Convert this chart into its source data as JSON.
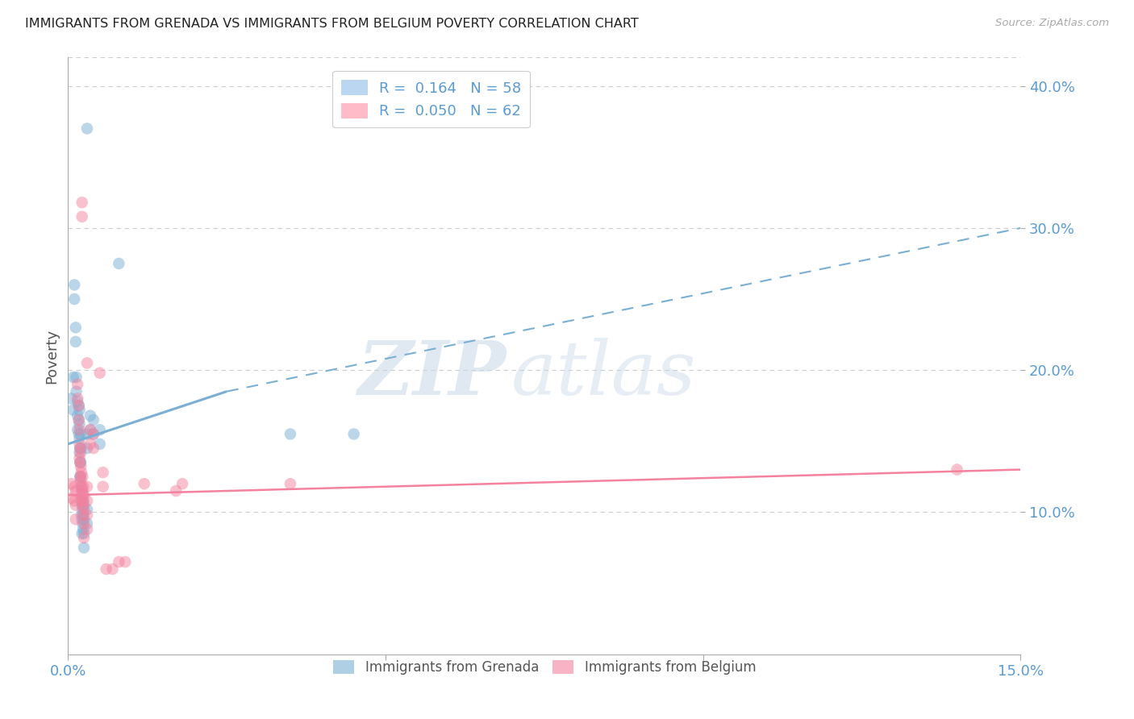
{
  "title": "IMMIGRANTS FROM GRENADA VS IMMIGRANTS FROM BELGIUM POVERTY CORRELATION CHART",
  "source": "Source: ZipAtlas.com",
  "ylabel": "Poverty",
  "ytick_labels": [
    "10.0%",
    "20.0%",
    "30.0%",
    "40.0%"
  ],
  "ytick_values": [
    0.1,
    0.2,
    0.3,
    0.4
  ],
  "xlim": [
    0.0,
    0.15
  ],
  "ylim": [
    0.0,
    0.42
  ],
  "grenada_color": "#7AAFD4",
  "belgium_color": "#F4829E",
  "watermark_zip": "ZIP",
  "watermark_atlas": "atlas",
  "background_color": "#FFFFFF",
  "grid_color": "#CCCCCC",
  "grenada_scatter": [
    [
      0.0005,
      0.18
    ],
    [
      0.0008,
      0.195
    ],
    [
      0.0008,
      0.172
    ],
    [
      0.001,
      0.26
    ],
    [
      0.001,
      0.25
    ],
    [
      0.0012,
      0.23
    ],
    [
      0.0012,
      0.22
    ],
    [
      0.0013,
      0.195
    ],
    [
      0.0013,
      0.185
    ],
    [
      0.0015,
      0.178
    ],
    [
      0.0015,
      0.168
    ],
    [
      0.0015,
      0.158
    ],
    [
      0.0017,
      0.175
    ],
    [
      0.0017,
      0.165
    ],
    [
      0.0017,
      0.155
    ],
    [
      0.0018,
      0.172
    ],
    [
      0.0018,
      0.162
    ],
    [
      0.0018,
      0.152
    ],
    [
      0.0018,
      0.142
    ],
    [
      0.0019,
      0.145
    ],
    [
      0.0019,
      0.135
    ],
    [
      0.0019,
      0.125
    ],
    [
      0.002,
      0.155
    ],
    [
      0.002,
      0.145
    ],
    [
      0.002,
      0.135
    ],
    [
      0.002,
      0.125
    ],
    [
      0.0021,
      0.118
    ],
    [
      0.0021,
      0.108
    ],
    [
      0.0021,
      0.098
    ],
    [
      0.0022,
      0.115
    ],
    [
      0.0022,
      0.105
    ],
    [
      0.0022,
      0.095
    ],
    [
      0.0022,
      0.085
    ],
    [
      0.0023,
      0.112
    ],
    [
      0.0023,
      0.102
    ],
    [
      0.0023,
      0.092
    ],
    [
      0.0024,
      0.108
    ],
    [
      0.0024,
      0.098
    ],
    [
      0.0024,
      0.088
    ],
    [
      0.0025,
      0.105
    ],
    [
      0.0025,
      0.095
    ],
    [
      0.0025,
      0.085
    ],
    [
      0.0025,
      0.075
    ],
    [
      0.003,
      0.37
    ],
    [
      0.003,
      0.155
    ],
    [
      0.003,
      0.145
    ],
    [
      0.003,
      0.102
    ],
    [
      0.003,
      0.092
    ],
    [
      0.0035,
      0.168
    ],
    [
      0.0035,
      0.158
    ],
    [
      0.004,
      0.165
    ],
    [
      0.004,
      0.155
    ],
    [
      0.005,
      0.158
    ],
    [
      0.005,
      0.148
    ],
    [
      0.008,
      0.275
    ],
    [
      0.035,
      0.155
    ],
    [
      0.045,
      0.155
    ]
  ],
  "belgium_scatter": [
    [
      0.0005,
      0.12
    ],
    [
      0.0005,
      0.11
    ],
    [
      0.001,
      0.118
    ],
    [
      0.001,
      0.108
    ],
    [
      0.0012,
      0.115
    ],
    [
      0.0012,
      0.105
    ],
    [
      0.0012,
      0.095
    ],
    [
      0.0015,
      0.19
    ],
    [
      0.0015,
      0.18
    ],
    [
      0.0017,
      0.175
    ],
    [
      0.0017,
      0.165
    ],
    [
      0.0018,
      0.158
    ],
    [
      0.0018,
      0.148
    ],
    [
      0.0018,
      0.138
    ],
    [
      0.0019,
      0.145
    ],
    [
      0.0019,
      0.135
    ],
    [
      0.0019,
      0.125
    ],
    [
      0.002,
      0.142
    ],
    [
      0.002,
      0.132
    ],
    [
      0.002,
      0.122
    ],
    [
      0.002,
      0.112
    ],
    [
      0.0021,
      0.128
    ],
    [
      0.0021,
      0.118
    ],
    [
      0.0021,
      0.108
    ],
    [
      0.0022,
      0.318
    ],
    [
      0.0022,
      0.308
    ],
    [
      0.0023,
      0.125
    ],
    [
      0.0023,
      0.115
    ],
    [
      0.0023,
      0.105
    ],
    [
      0.0024,
      0.118
    ],
    [
      0.0024,
      0.108
    ],
    [
      0.0024,
      0.098
    ],
    [
      0.0025,
      0.112
    ],
    [
      0.0025,
      0.102
    ],
    [
      0.0025,
      0.092
    ],
    [
      0.0025,
      0.082
    ],
    [
      0.003,
      0.205
    ],
    [
      0.003,
      0.118
    ],
    [
      0.003,
      0.108
    ],
    [
      0.003,
      0.098
    ],
    [
      0.003,
      0.088
    ],
    [
      0.0035,
      0.158
    ],
    [
      0.0035,
      0.148
    ],
    [
      0.004,
      0.155
    ],
    [
      0.004,
      0.145
    ],
    [
      0.005,
      0.198
    ],
    [
      0.0055,
      0.128
    ],
    [
      0.0055,
      0.118
    ],
    [
      0.006,
      0.06
    ],
    [
      0.007,
      0.06
    ],
    [
      0.008,
      0.065
    ],
    [
      0.009,
      0.065
    ],
    [
      0.012,
      0.12
    ],
    [
      0.017,
      0.115
    ],
    [
      0.018,
      0.12
    ],
    [
      0.035,
      0.12
    ],
    [
      0.14,
      0.13
    ]
  ],
  "grenada_solid_line": {
    "x0": 0.0,
    "y0": 0.148,
    "x1": 0.025,
    "y1": 0.185
  },
  "grenada_dashed_line": {
    "x0": 0.025,
    "y0": 0.185,
    "x1": 0.15,
    "y1": 0.3
  },
  "belgium_solid_line": {
    "x0": 0.0,
    "y0": 0.112,
    "x1": 0.15,
    "y1": 0.13
  }
}
